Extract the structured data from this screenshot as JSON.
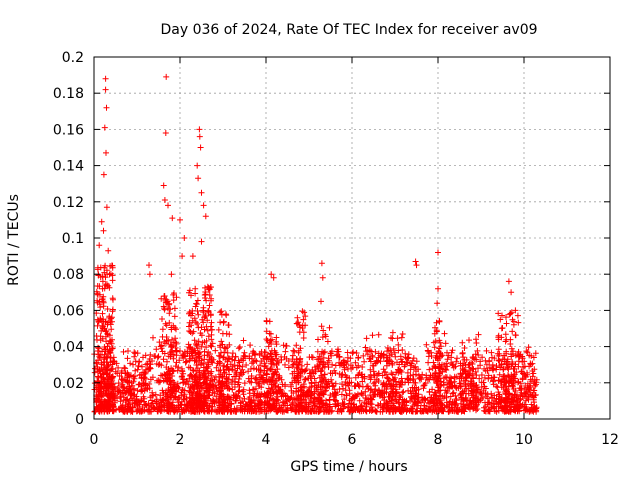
{
  "chart_data": {
    "type": "scatter",
    "title": "Day 036 of 2024, Rate Of TEC Index for receiver av09",
    "xlabel": "GPS time / hours",
    "ylabel": "ROTI / TECUs",
    "xlim": [
      0,
      12
    ],
    "ylim": [
      0,
      0.2
    ],
    "xticks": [
      0,
      2,
      4,
      6,
      8,
      10,
      12
    ],
    "yticks": [
      0,
      0.02,
      0.04,
      0.06,
      0.08,
      0.1,
      0.12,
      0.14,
      0.16,
      0.18,
      0.2
    ],
    "xtick_labels": [
      "0",
      "2",
      "4",
      "6",
      "8",
      "10",
      "12"
    ],
    "ytick_labels": [
      "0",
      "0.02",
      "0.04",
      "0.06",
      "0.08",
      "0.1",
      "0.12",
      "0.14",
      "0.16",
      "0.18",
      "0.2"
    ],
    "grid": true,
    "marker": "+",
    "color": "#ff0000",
    "series": [
      {
        "name": "ROTI",
        "notable_points": [
          {
            "x": 0.27,
            "y": 0.188
          },
          {
            "x": 0.27,
            "y": 0.182
          },
          {
            "x": 0.29,
            "y": 0.172
          },
          {
            "x": 0.25,
            "y": 0.161
          },
          {
            "x": 0.28,
            "y": 0.147
          },
          {
            "x": 0.23,
            "y": 0.135
          },
          {
            "x": 0.3,
            "y": 0.117
          },
          {
            "x": 0.18,
            "y": 0.109
          },
          {
            "x": 0.22,
            "y": 0.104
          },
          {
            "x": 0.12,
            "y": 0.096
          },
          {
            "x": 0.33,
            "y": 0.093
          },
          {
            "x": 0.2,
            "y": 0.072
          },
          {
            "x": 1.68,
            "y": 0.189
          },
          {
            "x": 1.67,
            "y": 0.158
          },
          {
            "x": 1.62,
            "y": 0.129
          },
          {
            "x": 1.65,
            "y": 0.121
          },
          {
            "x": 1.72,
            "y": 0.118
          },
          {
            "x": 1.82,
            "y": 0.111
          },
          {
            "x": 1.8,
            "y": 0.08
          },
          {
            "x": 1.28,
            "y": 0.085
          },
          {
            "x": 1.3,
            "y": 0.08
          },
          {
            "x": 2.0,
            "y": 0.11
          },
          {
            "x": 2.1,
            "y": 0.1
          },
          {
            "x": 2.05,
            "y": 0.09
          },
          {
            "x": 2.45,
            "y": 0.16
          },
          {
            "x": 2.46,
            "y": 0.156
          },
          {
            "x": 2.48,
            "y": 0.15
          },
          {
            "x": 2.4,
            "y": 0.14
          },
          {
            "x": 2.42,
            "y": 0.133
          },
          {
            "x": 2.5,
            "y": 0.125
          },
          {
            "x": 2.55,
            "y": 0.118
          },
          {
            "x": 2.6,
            "y": 0.112
          },
          {
            "x": 2.5,
            "y": 0.098
          },
          {
            "x": 2.3,
            "y": 0.09
          },
          {
            "x": 4.12,
            "y": 0.08
          },
          {
            "x": 4.18,
            "y": 0.078
          },
          {
            "x": 5.3,
            "y": 0.086
          },
          {
            "x": 5.32,
            "y": 0.078
          },
          {
            "x": 5.28,
            "y": 0.065
          },
          {
            "x": 7.48,
            "y": 0.087
          },
          {
            "x": 7.5,
            "y": 0.085
          },
          {
            "x": 8.0,
            "y": 0.092
          },
          {
            "x": 8.0,
            "y": 0.072
          },
          {
            "x": 7.98,
            "y": 0.064
          },
          {
            "x": 9.65,
            "y": 0.076
          },
          {
            "x": 9.7,
            "y": 0.07
          },
          {
            "x": 9.8,
            "y": 0.06
          }
        ],
        "bulk_envelope": {
          "x_range": [
            0.0,
            10.3
          ],
          "typical_y_range": [
            0.0,
            0.04
          ],
          "median_y": 0.015
        }
      }
    ]
  }
}
